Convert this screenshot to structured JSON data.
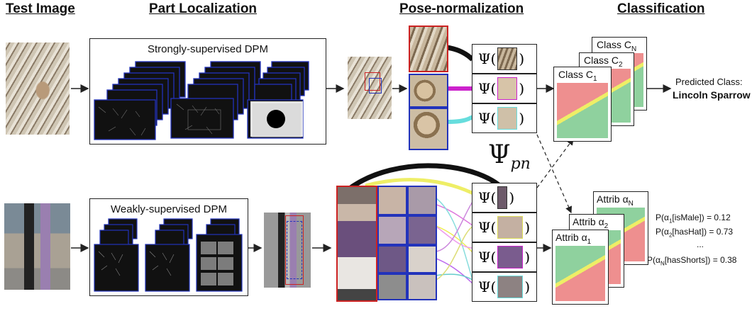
{
  "headers": {
    "test_image": "Test Image",
    "part_localization": "Part Localization",
    "pose_normalization": "Pose-normalization",
    "classification": "Classification"
  },
  "top": {
    "dpm_label": "Strongly-supervised DPM",
    "psi_label": "Ψ(",
    "psi_close": ")",
    "class_cards": [
      {
        "label": "Class C",
        "sub": "N"
      },
      {
        "label": "Class C",
        "sub": "2"
      },
      {
        "label": "Class C",
        "sub": "1"
      }
    ],
    "ellipsis": "...",
    "predicted_label": "Predicted Class:",
    "predicted_value": "Lincoln Sparrow"
  },
  "middle": {
    "psi_symbol": "Ψ",
    "psi_sub": "pn"
  },
  "bottom": {
    "dpm_label": "Weakly-supervised DPM",
    "psi_label": "Ψ(",
    "psi_close": ")",
    "attrib_cards": [
      {
        "label": "Attrib α",
        "sub": "N"
      },
      {
        "label": "Attrib α",
        "sub": "2"
      },
      {
        "label": "Attrib α",
        "sub": "1"
      }
    ],
    "ellipsis": "...",
    "probabilities": [
      {
        "text": "P(α",
        "sub": "1",
        "rest": "[isMale]) = 0.12"
      },
      {
        "text": "P(α",
        "sub": "2",
        "rest": "[hasHat]) = 0.73"
      },
      {
        "text": "...",
        "sub": "",
        "rest": ""
      },
      {
        "text": "P(α",
        "sub": "N",
        "rest": "[hasShorts]) = 0.38"
      }
    ]
  },
  "colors": {
    "red": "#cc2222",
    "blue": "#2233bb",
    "magenta": "#cc22cc",
    "cyan": "#66dddd",
    "yellow": "#eeee66",
    "green_panel": "#8fd19e",
    "red_panel": "#ee8f8f"
  }
}
